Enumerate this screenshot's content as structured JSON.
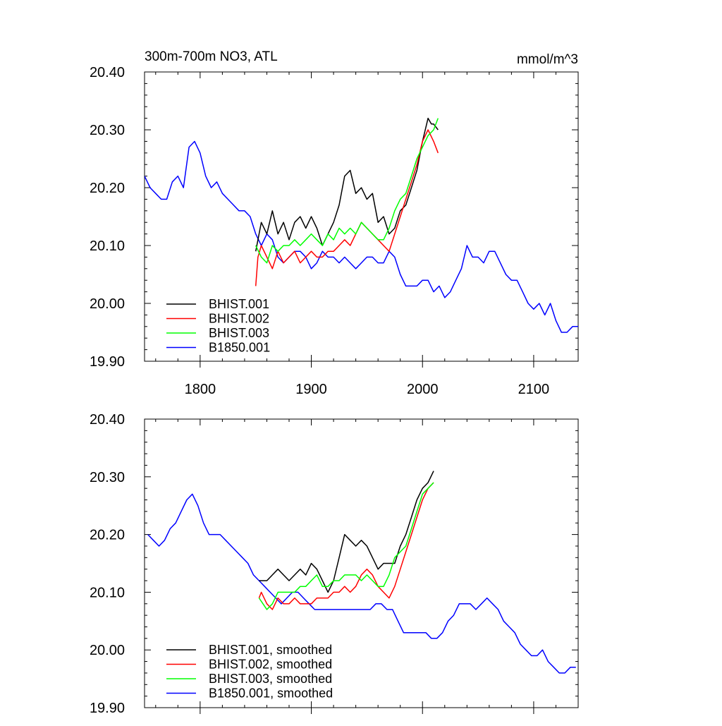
{
  "page_title": "300m-700m NO3, ATL",
  "chart_data": [
    {
      "type": "line",
      "title": "300m-700m NO3, ATL",
      "units": "mmol/m^3",
      "xlim": [
        1750,
        2140
      ],
      "ylim": [
        19.9,
        20.4
      ],
      "xticks": [
        1800,
        1900,
        2000,
        2100
      ],
      "yticks": [
        19.9,
        20.0,
        20.1,
        20.2,
        20.3,
        20.4
      ],
      "yticklabels": [
        "19.90",
        "20.00",
        "20.10",
        "20.20",
        "20.30",
        "20.40"
      ],
      "xticklabels_visible": true,
      "legend_position": "bottom-left",
      "legend": [
        "BHIST.001",
        "BHIST.002",
        "BHIST.003",
        "B1850.001"
      ],
      "series": [
        {
          "name": "BHIST.001",
          "color": "#000000",
          "x": [
            1850,
            1855,
            1860,
            1865,
            1870,
            1875,
            1880,
            1885,
            1890,
            1895,
            1900,
            1905,
            1910,
            1915,
            1920,
            1925,
            1930,
            1935,
            1940,
            1945,
            1950,
            1955,
            1960,
            1965,
            1970,
            1975,
            1980,
            1985,
            1990,
            1995,
            2000,
            2005,
            2008,
            2010,
            2014
          ],
          "y": [
            20.09,
            20.14,
            20.12,
            20.16,
            20.12,
            20.14,
            20.11,
            20.14,
            20.15,
            20.13,
            20.15,
            20.13,
            20.1,
            20.12,
            20.14,
            20.17,
            20.22,
            20.23,
            20.19,
            20.2,
            20.18,
            20.19,
            20.14,
            20.15,
            20.12,
            20.13,
            20.16,
            20.17,
            20.2,
            20.23,
            20.28,
            20.32,
            20.31,
            20.31,
            20.3
          ]
        },
        {
          "name": "BHIST.002",
          "color": "#ff0000",
          "x": [
            1850,
            1852,
            1855,
            1860,
            1865,
            1870,
            1875,
            1880,
            1885,
            1890,
            1895,
            1900,
            1905,
            1910,
            1915,
            1920,
            1925,
            1930,
            1935,
            1940,
            1945,
            1950,
            1955,
            1960,
            1965,
            1970,
            1975,
            1980,
            1985,
            1990,
            1995,
            2000,
            2005,
            2010,
            2014
          ],
          "y": [
            20.03,
            20.08,
            20.1,
            20.08,
            20.06,
            20.09,
            20.07,
            20.08,
            20.09,
            20.07,
            20.08,
            20.09,
            20.08,
            20.08,
            20.09,
            20.09,
            20.1,
            20.11,
            20.1,
            20.12,
            20.14,
            20.13,
            20.12,
            20.11,
            20.1,
            20.09,
            20.12,
            20.15,
            20.18,
            20.21,
            20.24,
            20.28,
            20.3,
            20.28,
            20.26
          ]
        },
        {
          "name": "BHIST.003",
          "color": "#00ff00",
          "x": [
            1850,
            1855,
            1860,
            1865,
            1870,
            1875,
            1880,
            1885,
            1890,
            1895,
            1900,
            1905,
            1910,
            1915,
            1920,
            1925,
            1930,
            1935,
            1940,
            1945,
            1950,
            1955,
            1960,
            1965,
            1970,
            1975,
            1980,
            1985,
            1990,
            1995,
            2000,
            2005,
            2010,
            2014
          ],
          "y": [
            20.1,
            20.08,
            20.07,
            20.1,
            20.09,
            20.1,
            20.1,
            20.11,
            20.1,
            20.11,
            20.12,
            20.11,
            20.1,
            20.12,
            20.11,
            20.13,
            20.12,
            20.13,
            20.12,
            20.14,
            20.13,
            20.12,
            20.11,
            20.11,
            20.13,
            20.16,
            20.18,
            20.19,
            20.22,
            20.25,
            20.27,
            20.29,
            20.3,
            20.32
          ]
        },
        {
          "name": "B1850.001",
          "color": "#0000ff",
          "x": [
            1750,
            1755,
            1760,
            1765,
            1770,
            1775,
            1780,
            1785,
            1790,
            1795,
            1800,
            1805,
            1810,
            1815,
            1820,
            1825,
            1830,
            1835,
            1840,
            1845,
            1850,
            1855,
            1860,
            1865,
            1870,
            1875,
            1880,
            1885,
            1890,
            1895,
            1900,
            1905,
            1910,
            1915,
            1920,
            1925,
            1930,
            1935,
            1940,
            1945,
            1950,
            1955,
            1960,
            1965,
            1970,
            1975,
            1980,
            1985,
            1990,
            1995,
            2000,
            2005,
            2010,
            2015,
            2020,
            2025,
            2030,
            2035,
            2040,
            2045,
            2050,
            2055,
            2060,
            2065,
            2070,
            2075,
            2080,
            2085,
            2090,
            2095,
            2100,
            2105,
            2110,
            2115,
            2120,
            2125,
            2130,
            2135,
            2140
          ],
          "y": [
            20.22,
            20.2,
            20.19,
            20.18,
            20.18,
            20.21,
            20.22,
            20.2,
            20.27,
            20.28,
            20.26,
            20.22,
            20.2,
            20.21,
            20.19,
            20.18,
            20.17,
            20.16,
            20.16,
            20.15,
            20.12,
            20.1,
            20.12,
            20.11,
            20.08,
            20.07,
            20.08,
            20.09,
            20.09,
            20.08,
            20.06,
            20.07,
            20.09,
            20.08,
            20.08,
            20.07,
            20.08,
            20.07,
            20.06,
            20.07,
            20.08,
            20.08,
            20.07,
            20.07,
            20.09,
            20.08,
            20.05,
            20.03,
            20.03,
            20.03,
            20.04,
            20.04,
            20.02,
            20.03,
            20.01,
            20.02,
            20.04,
            20.06,
            20.1,
            20.08,
            20.08,
            20.07,
            20.09,
            20.09,
            20.07,
            20.05,
            20.04,
            20.04,
            20.02,
            20.0,
            19.99,
            20.0,
            19.98,
            20.0,
            19.97,
            19.95,
            19.95,
            19.96,
            19.96
          ]
        }
      ]
    },
    {
      "type": "line",
      "title": "",
      "units": "",
      "xlim": [
        1750,
        2140
      ],
      "ylim": [
        19.9,
        20.4
      ],
      "xticks": [
        1800,
        1900,
        2000,
        2100
      ],
      "yticks": [
        19.9,
        20.0,
        20.1,
        20.2,
        20.3,
        20.4
      ],
      "yticklabels": [
        "19.90",
        "20.00",
        "20.10",
        "20.20",
        "20.30",
        "20.40"
      ],
      "xticklabels_visible": false,
      "legend_position": "bottom-left",
      "legend": [
        "BHIST.001, smoothed",
        "BHIST.002, smoothed",
        "BHIST.003, smoothed",
        "B1850.001, smoothed"
      ],
      "series": [
        {
          "name": "BHIST.001, smoothed",
          "color": "#000000",
          "x": [
            1853,
            1860,
            1865,
            1870,
            1875,
            1880,
            1885,
            1890,
            1895,
            1900,
            1905,
            1910,
            1915,
            1920,
            1925,
            1930,
            1935,
            1940,
            1945,
            1950,
            1955,
            1960,
            1965,
            1970,
            1975,
            1980,
            1985,
            1990,
            1995,
            2000,
            2005,
            2010
          ],
          "y": [
            20.12,
            20.12,
            20.13,
            20.14,
            20.13,
            20.12,
            20.13,
            20.14,
            20.13,
            20.15,
            20.14,
            20.12,
            20.1,
            20.12,
            20.16,
            20.2,
            20.19,
            20.18,
            20.19,
            20.18,
            20.16,
            20.14,
            20.15,
            20.15,
            20.15,
            20.18,
            20.2,
            20.23,
            20.26,
            20.28,
            20.29,
            20.31
          ]
        },
        {
          "name": "BHIST.002, smoothed",
          "color": "#ff0000",
          "x": [
            1853,
            1855,
            1860,
            1865,
            1870,
            1875,
            1880,
            1885,
            1890,
            1895,
            1900,
            1905,
            1910,
            1915,
            1920,
            1925,
            1930,
            1935,
            1940,
            1945,
            1950,
            1955,
            1960,
            1965,
            1970,
            1975,
            1980,
            1985,
            1990,
            1995,
            2000,
            2005,
            2010
          ],
          "y": [
            20.09,
            20.1,
            20.08,
            20.07,
            20.09,
            20.08,
            20.08,
            20.09,
            20.08,
            20.08,
            20.08,
            20.09,
            20.09,
            20.09,
            20.1,
            20.1,
            20.11,
            20.1,
            20.11,
            20.13,
            20.14,
            20.13,
            20.11,
            20.1,
            20.09,
            20.11,
            20.14,
            20.17,
            20.2,
            20.23,
            20.26,
            20.28,
            20.29
          ]
        },
        {
          "name": "BHIST.003, smoothed",
          "color": "#00ff00",
          "x": [
            1853,
            1860,
            1865,
            1870,
            1875,
            1880,
            1885,
            1890,
            1895,
            1900,
            1905,
            1910,
            1915,
            1920,
            1925,
            1930,
            1935,
            1940,
            1945,
            1950,
            1955,
            1960,
            1965,
            1970,
            1975,
            1980,
            1985,
            1990,
            1995,
            2000,
            2005,
            2010
          ],
          "y": [
            20.09,
            20.07,
            20.08,
            20.1,
            20.1,
            20.1,
            20.1,
            20.11,
            20.11,
            20.12,
            20.13,
            20.11,
            20.11,
            20.12,
            20.12,
            20.13,
            20.13,
            20.13,
            20.12,
            20.13,
            20.12,
            20.11,
            20.11,
            20.13,
            20.16,
            20.17,
            20.18,
            20.21,
            20.24,
            20.27,
            20.28,
            20.29
          ]
        },
        {
          "name": "B1850.001, smoothed",
          "color": "#0000ff",
          "x": [
            1753,
            1758,
            1763,
            1768,
            1773,
            1778,
            1783,
            1788,
            1793,
            1798,
            1803,
            1808,
            1813,
            1818,
            1823,
            1828,
            1833,
            1838,
            1843,
            1848,
            1853,
            1858,
            1863,
            1868,
            1873,
            1878,
            1883,
            1888,
            1893,
            1898,
            1903,
            1908,
            1913,
            1918,
            1923,
            1928,
            1933,
            1938,
            1943,
            1948,
            1953,
            1958,
            1963,
            1968,
            1973,
            1978,
            1983,
            1988,
            1993,
            1998,
            2003,
            2008,
            2013,
            2018,
            2023,
            2028,
            2033,
            2038,
            2043,
            2048,
            2053,
            2058,
            2063,
            2068,
            2073,
            2078,
            2083,
            2088,
            2093,
            2098,
            2103,
            2108,
            2113,
            2118,
            2123,
            2128,
            2133,
            2138
          ],
          "y": [
            20.2,
            20.19,
            20.18,
            20.19,
            20.21,
            20.22,
            20.24,
            20.26,
            20.27,
            20.25,
            20.22,
            20.2,
            20.2,
            20.2,
            20.19,
            20.18,
            20.17,
            20.16,
            20.15,
            20.13,
            20.12,
            20.11,
            20.1,
            20.09,
            20.08,
            20.09,
            20.1,
            20.1,
            20.09,
            20.08,
            20.07,
            20.07,
            20.07,
            20.07,
            20.07,
            20.07,
            20.07,
            20.07,
            20.07,
            20.07,
            20.07,
            20.08,
            20.08,
            20.07,
            20.07,
            20.05,
            20.03,
            20.03,
            20.03,
            20.03,
            20.03,
            20.02,
            20.02,
            20.03,
            20.05,
            20.06,
            20.08,
            20.08,
            20.08,
            20.07,
            20.08,
            20.09,
            20.08,
            20.07,
            20.05,
            20.04,
            20.03,
            20.01,
            20.0,
            19.99,
            19.99,
            20.0,
            19.98,
            19.97,
            19.96,
            19.96,
            19.97,
            19.97
          ]
        }
      ]
    }
  ]
}
